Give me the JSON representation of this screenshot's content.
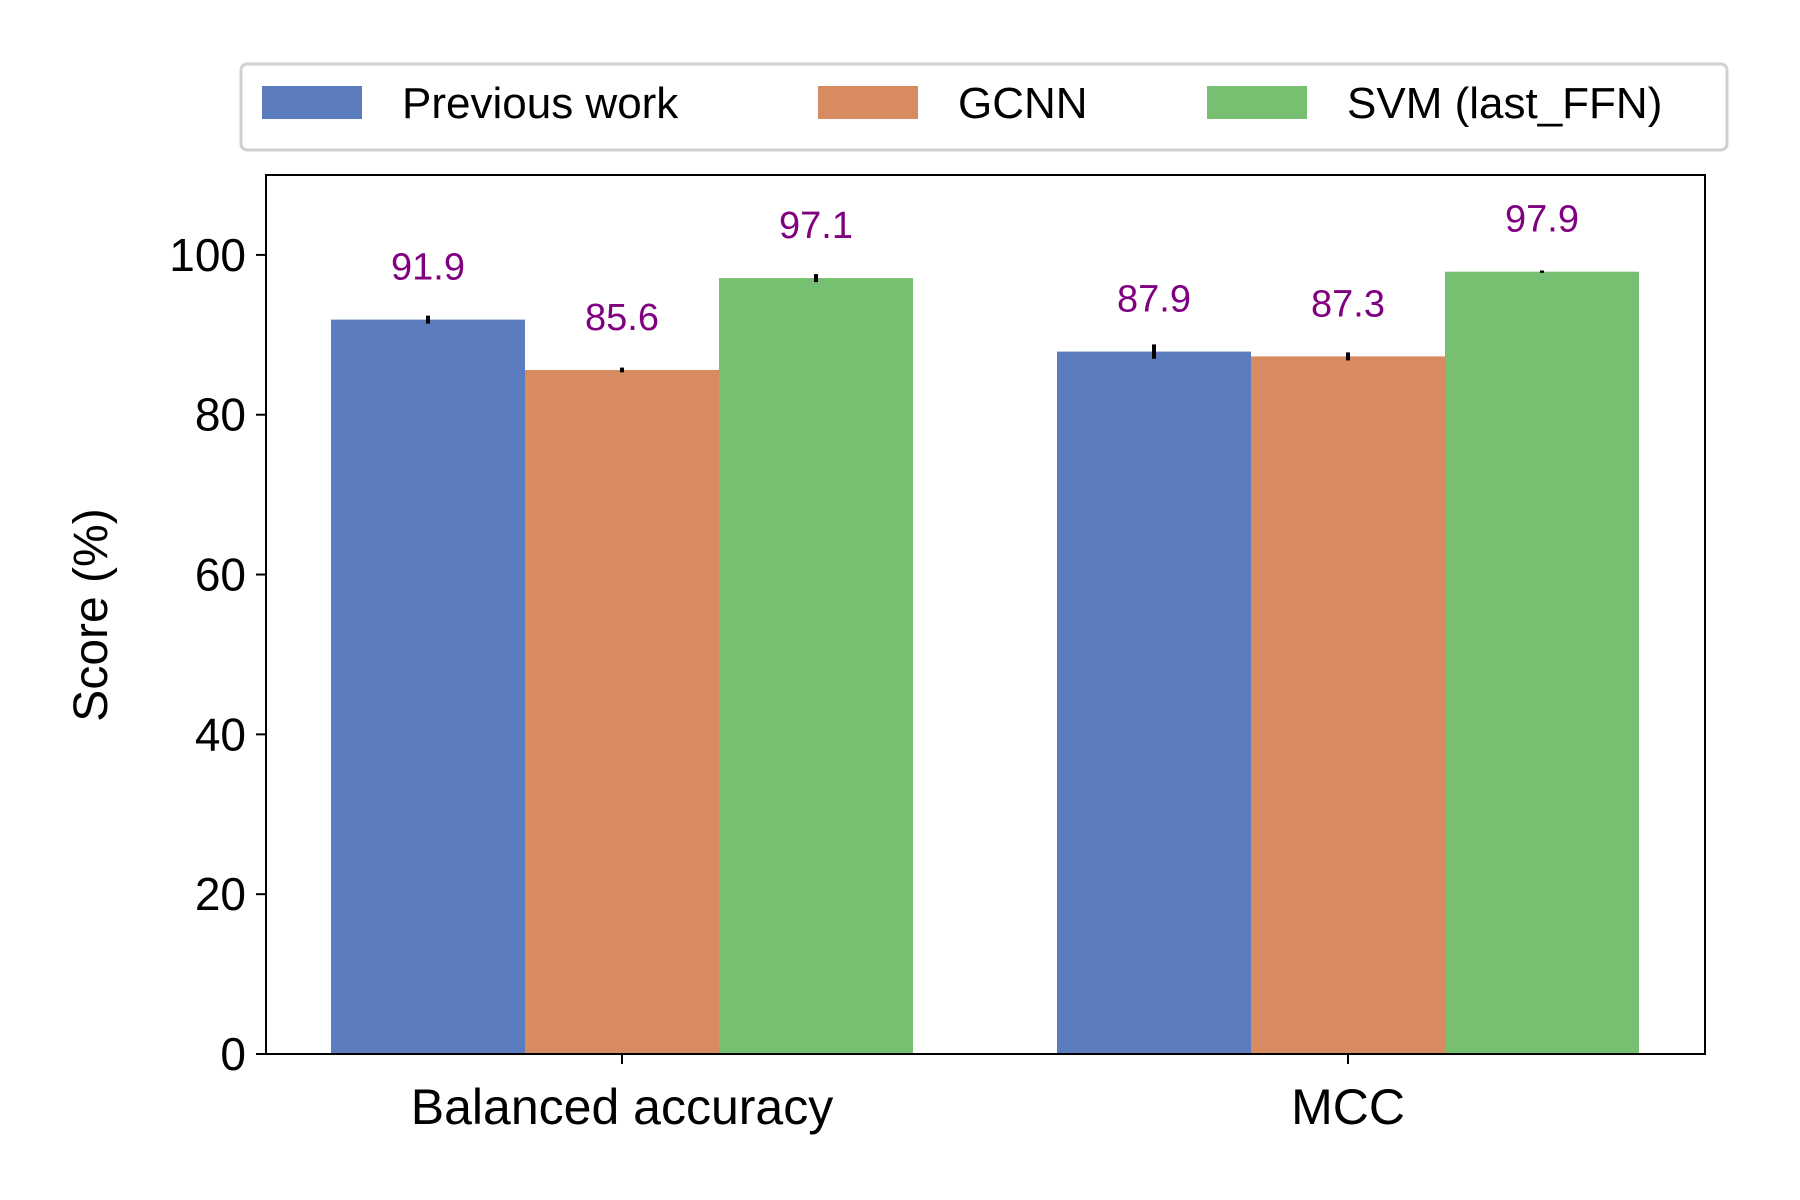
{
  "chart_data": {
    "type": "bar",
    "title": "",
    "xlabel": "",
    "ylabel": "Score (%)",
    "ylim": [
      0,
      110
    ],
    "yticks": [
      0,
      20,
      40,
      60,
      80,
      100
    ],
    "categories": [
      "Balanced accuracy",
      "MCC"
    ],
    "legend_position": "top",
    "grid": false,
    "series": [
      {
        "name": "Previous work",
        "color": "#5b7dbf",
        "values": [
          91.9,
          87.9
        ],
        "errors": [
          0.5,
          0.9
        ],
        "labels": [
          "91.9",
          "87.9"
        ]
      },
      {
        "name": "GCNN",
        "color": "#d88b60",
        "values": [
          85.6,
          87.3
        ],
        "errors": [
          0.3,
          0.5
        ],
        "labels": [
          "85.6",
          "87.3"
        ]
      },
      {
        "name": "SVM (last_FFN)",
        "color": "#77bf71",
        "values": [
          97.1,
          97.9
        ],
        "errors": [
          0.5,
          0.15
        ],
        "labels": [
          "97.1",
          "97.9"
        ]
      }
    ],
    "label_color": "#800080"
  }
}
